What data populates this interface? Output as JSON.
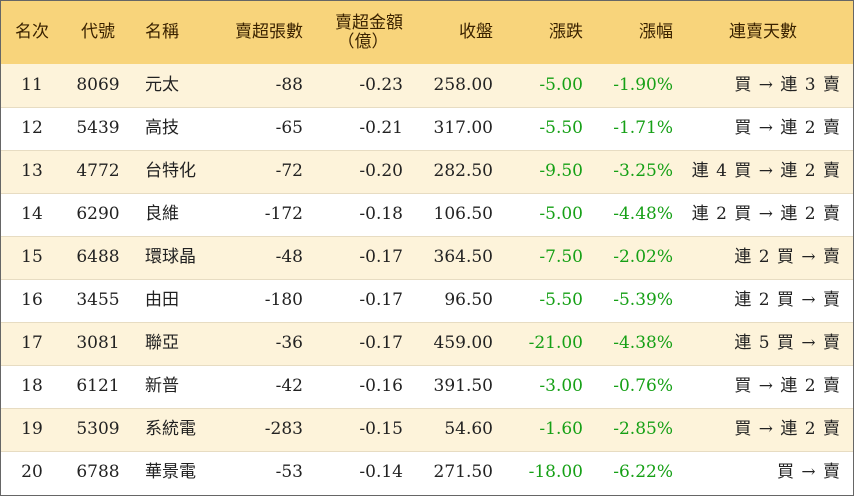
{
  "table": {
    "headers": {
      "rank": "名次",
      "code": "代號",
      "name": "名稱",
      "oversold_lots": "賣超張數",
      "oversold_amount_line1": "賣超金額",
      "oversold_amount_line2": "（億）",
      "close": "收盤",
      "change": "漲跌",
      "change_pct": "漲幅",
      "streak": "連賣天數"
    },
    "rows": [
      {
        "rank": "11",
        "code": "8069",
        "name": "元太",
        "lots": "-88",
        "amount": "-0.23",
        "close": "258.00",
        "change": "-5.00",
        "pct": "-1.90%",
        "streak": "買 → 連 3 賣"
      },
      {
        "rank": "12",
        "code": "5439",
        "name": "高技",
        "lots": "-65",
        "amount": "-0.21",
        "close": "317.00",
        "change": "-5.50",
        "pct": "-1.71%",
        "streak": "買 → 連 2 賣"
      },
      {
        "rank": "13",
        "code": "4772",
        "name": "台特化",
        "lots": "-72",
        "amount": "-0.20",
        "close": "282.50",
        "change": "-9.50",
        "pct": "-3.25%",
        "streak": "連 4 買 → 連 2 賣"
      },
      {
        "rank": "14",
        "code": "6290",
        "name": "良維",
        "lots": "-172",
        "amount": "-0.18",
        "close": "106.50",
        "change": "-5.00",
        "pct": "-4.48%",
        "streak": "連 2 買 → 連 2 賣"
      },
      {
        "rank": "15",
        "code": "6488",
        "name": "環球晶",
        "lots": "-48",
        "amount": "-0.17",
        "close": "364.50",
        "change": "-7.50",
        "pct": "-2.02%",
        "streak": "連 2 買 → 賣"
      },
      {
        "rank": "16",
        "code": "3455",
        "name": "由田",
        "lots": "-180",
        "amount": "-0.17",
        "close": "96.50",
        "change": "-5.50",
        "pct": "-5.39%",
        "streak": "連 2 買 → 賣"
      },
      {
        "rank": "17",
        "code": "3081",
        "name": "聯亞",
        "lots": "-36",
        "amount": "-0.17",
        "close": "459.00",
        "change": "-21.00",
        "pct": "-4.38%",
        "streak": "連 5 買 → 賣"
      },
      {
        "rank": "18",
        "code": "6121",
        "name": "新普",
        "lots": "-42",
        "amount": "-0.16",
        "close": "391.50",
        "change": "-3.00",
        "pct": "-0.76%",
        "streak": "買 → 連 2 賣"
      },
      {
        "rank": "19",
        "code": "5309",
        "name": "系統電",
        "lots": "-283",
        "amount": "-0.15",
        "close": "54.60",
        "change": "-1.60",
        "pct": "-2.85%",
        "streak": "買 → 連 2 賣"
      },
      {
        "rank": "20",
        "code": "6788",
        "name": "華景電",
        "lots": "-53",
        "amount": "-0.14",
        "close": "271.50",
        "change": "-18.00",
        "pct": "-6.22%",
        "streak": "買 → 賣"
      }
    ]
  },
  "colors": {
    "header_bg": "#f8d47b",
    "odd_row_bg": "#fdf3da",
    "change_text": "#16a016"
  }
}
